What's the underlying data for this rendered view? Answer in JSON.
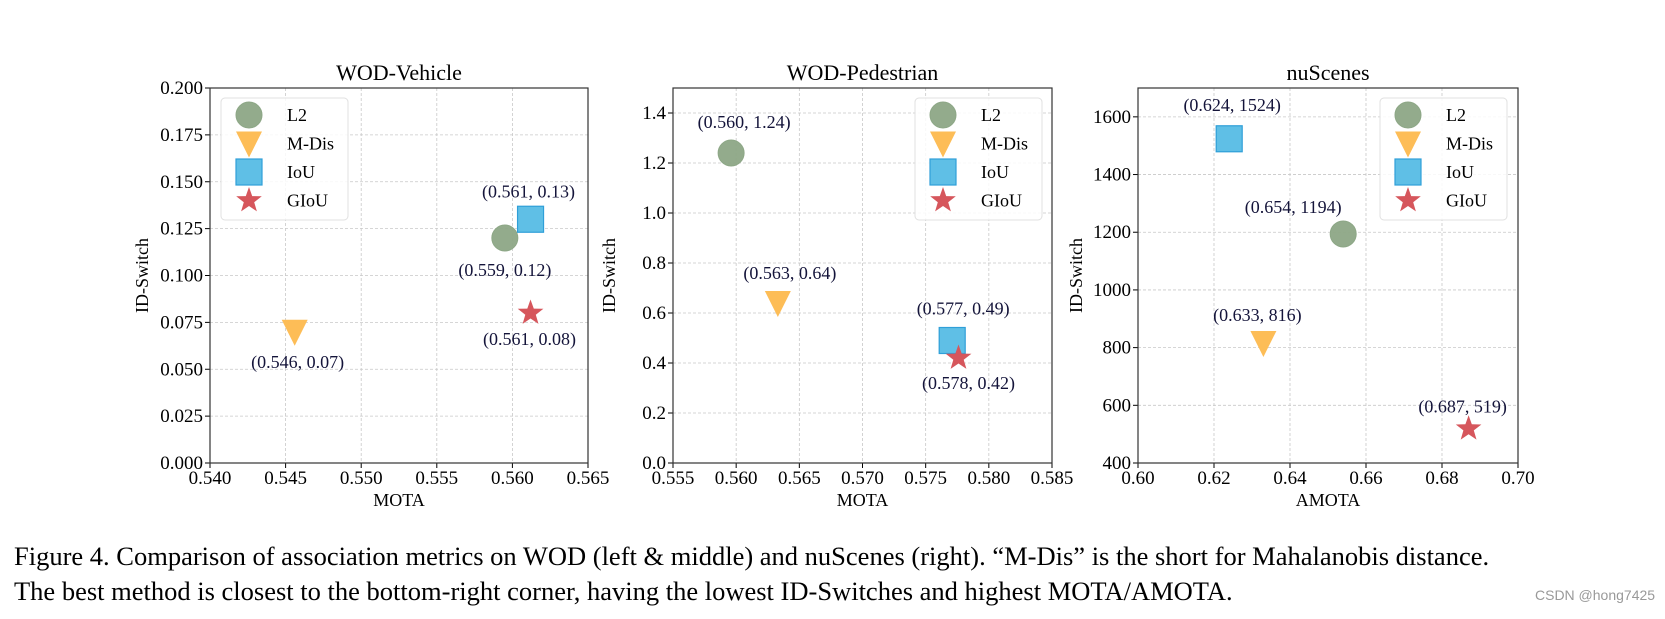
{
  "chart_data": [
    {
      "type": "scatter",
      "title": "WOD-Vehicle",
      "xlabel": "MOTA",
      "ylabel": "ID-Switch",
      "xlim": [
        0.54,
        0.565
      ],
      "ylim": [
        0.0,
        0.2
      ],
      "xticks": [
        "0.540",
        "0.545",
        "0.550",
        "0.555",
        "0.560",
        "0.565"
      ],
      "yticks": [
        "0.000",
        "0.025",
        "0.050",
        "0.075",
        "0.100",
        "0.125",
        "0.150",
        "0.175",
        "0.200"
      ],
      "grid": true,
      "legend": "top-left",
      "series": [
        {
          "name": "L2",
          "x": 0.5595,
          "y": 0.12,
          "label": "(0.559,  0.12)"
        },
        {
          "name": "M-Dis",
          "x": 0.5456,
          "y": 0.07,
          "label": "(0.546,  0.07)"
        },
        {
          "name": "IoU",
          "x": 0.5612,
          "y": 0.13,
          "label": "(0.561,  0.13)"
        },
        {
          "name": "GIoU",
          "x": 0.5612,
          "y": 0.08,
          "label": "(0.561,  0.08)"
        }
      ]
    },
    {
      "type": "scatter",
      "title": "WOD-Pedestrian",
      "xlabel": "MOTA",
      "ylabel": "ID-Switch",
      "xlim": [
        0.555,
        0.585
      ],
      "ylim": [
        0.0,
        1.5
      ],
      "xticks": [
        "0.555",
        "0.560",
        "0.565",
        "0.570",
        "0.575",
        "0.580",
        "0.585"
      ],
      "yticks": [
        "0.0",
        "0.2",
        "0.4",
        "0.6",
        "0.8",
        "1.0",
        "1.2",
        "1.4"
      ],
      "grid": true,
      "legend": "top-right",
      "series": [
        {
          "name": "L2",
          "x": 0.5596,
          "y": 1.24,
          "label": "(0.560,  1.24)"
        },
        {
          "name": "M-Dis",
          "x": 0.5633,
          "y": 0.64,
          "label": "(0.563,  0.64)"
        },
        {
          "name": "IoU",
          "x": 0.5771,
          "y": 0.49,
          "label": "(0.577,  0.49)"
        },
        {
          "name": "GIoU",
          "x": 0.5776,
          "y": 0.42,
          "label": "(0.578,  0.42)"
        }
      ]
    },
    {
      "type": "scatter",
      "title": "nuScenes",
      "xlabel": "AMOTA",
      "ylabel": "ID-Switch",
      "xlim": [
        0.6,
        0.7
      ],
      "ylim": [
        400,
        1700
      ],
      "xticks": [
        "0.60",
        "0.62",
        "0.64",
        "0.66",
        "0.68",
        "0.70"
      ],
      "yticks": [
        "400",
        "600",
        "800",
        "1000",
        "1200",
        "1400",
        "1600"
      ],
      "grid": true,
      "legend": "top-right",
      "series": [
        {
          "name": "L2",
          "x": 0.654,
          "y": 1194,
          "label": "(0.654,  1194)"
        },
        {
          "name": "M-Dis",
          "x": 0.633,
          "y": 816,
          "label": "(0.633,  816)"
        },
        {
          "name": "IoU",
          "x": 0.624,
          "y": 1524,
          "label": "(0.624,  1524)"
        },
        {
          "name": "GIoU",
          "x": 0.687,
          "y": 519,
          "label": "(0.687,  519)"
        }
      ]
    }
  ],
  "series_styles": {
    "L2": {
      "marker": "circle",
      "color": "#8da786"
    },
    "M-Dis": {
      "marker": "triangle-down",
      "color": "#fdbd57"
    },
    "IoU": {
      "marker": "square",
      "color": "#5fbfe6"
    },
    "GIoU": {
      "marker": "star",
      "color": "#d6565c"
    }
  },
  "caption": {
    "line1": "Figure 4. Comparison of association metrics on WOD (left & middle) and nuScenes (right). “M-Dis” is the short for Mahalanobis distance.",
    "line2": "The best method is closest to the bottom-right corner, having the lowest ID-Switches and highest MOTA/AMOTA."
  },
  "watermark": "CSDN @hong7425"
}
